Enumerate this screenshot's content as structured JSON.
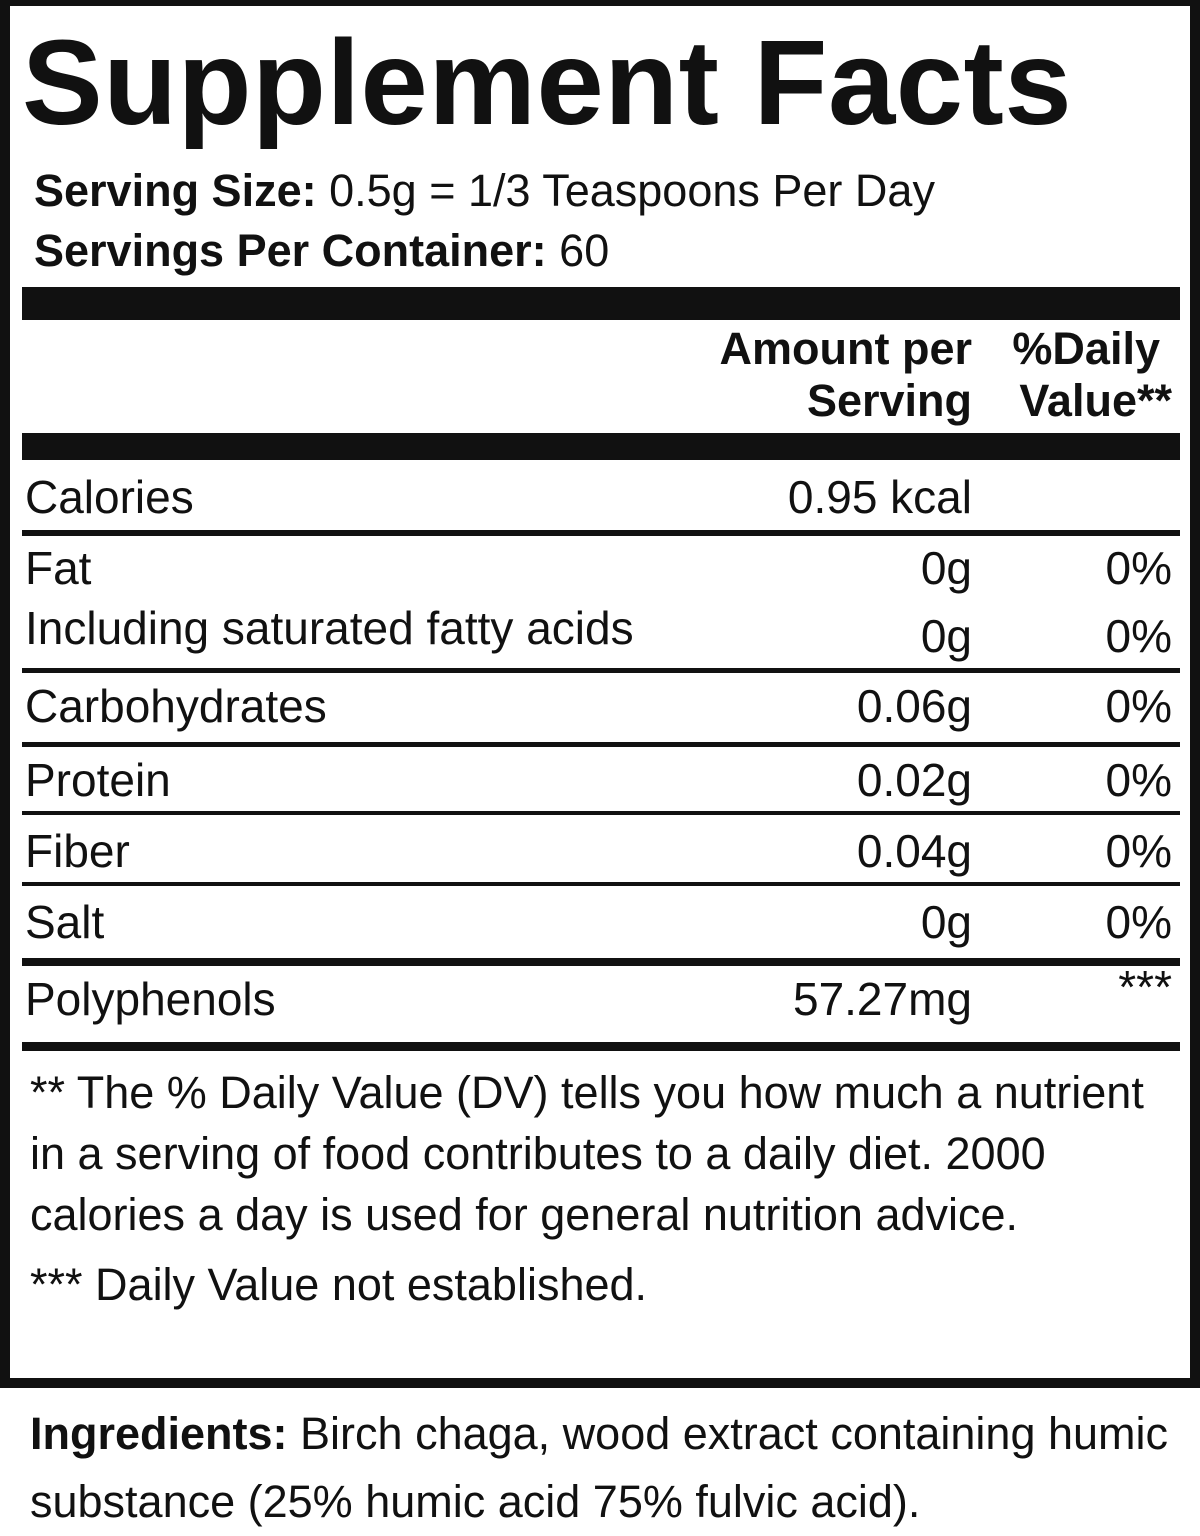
{
  "title": "Supplement Facts",
  "serving_size": {
    "label": "Serving Size:",
    "value": "0.5g = 1/3 Teaspoons Per Day"
  },
  "servings_per_container": {
    "label": "Servings Per Container:",
    "value": "60"
  },
  "table": {
    "header": {
      "amount": [
        "Amount per",
        "Serving"
      ],
      "daily_value": [
        "%Daily",
        "Value**"
      ]
    },
    "rows": [
      [
        "Calories",
        "0.95 kcal"
      ],
      [
        "Fat",
        "0g",
        "0%"
      ],
      [
        "Including saturated fatty acids",
        "0g",
        "0%"
      ],
      [
        "Carbohydrates",
        "0.06g",
        "0%"
      ],
      [
        "Protein",
        "0.02g",
        "0%"
      ],
      [
        "Fiber",
        "0.04g",
        "0%"
      ],
      [
        "Salt",
        "0g",
        "0%"
      ],
      [
        "Polyphenols",
        "57.27mg",
        "***"
      ]
    ]
  },
  "footnotes": [
    "** The % Daily Value (DV) tells you how much a nutrient in a serving of food contributes to a daily diet. 2000 calories a day is used for general nutrition advice.",
    "*** Daily Value not established."
  ],
  "ingredients": {
    "label": "Ingredients:",
    "text": "Birch chaga, wood extract containing humic substance (25% humic acid 75% fulvic acid)."
  }
}
